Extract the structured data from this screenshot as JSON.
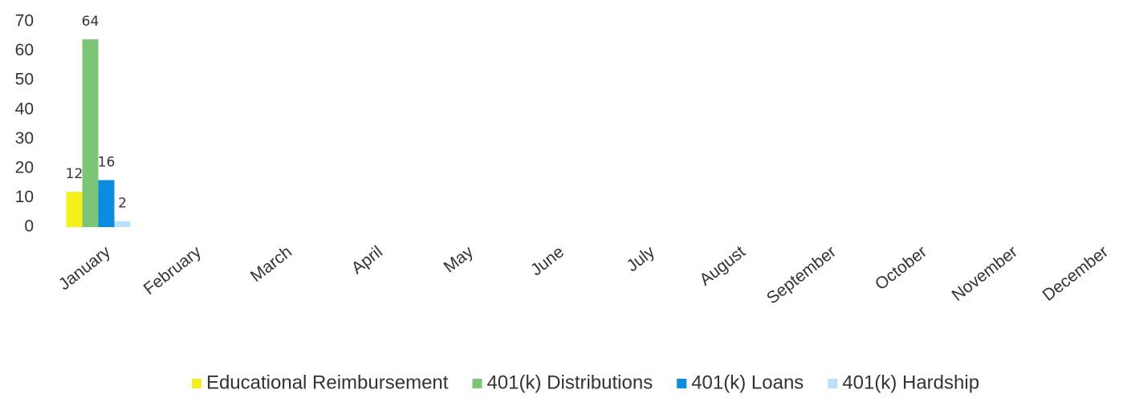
{
  "chart_data": {
    "type": "bar",
    "categories": [
      "January",
      "February",
      "March",
      "April",
      "May",
      "June",
      "July",
      "August",
      "September",
      "October",
      "November",
      "December"
    ],
    "series": [
      {
        "name": "Educational Reimbursement",
        "color": "#f5ef1a",
        "values": [
          12,
          null,
          null,
          null,
          null,
          null,
          null,
          null,
          null,
          null,
          null,
          null
        ]
      },
      {
        "name": "401(k) Distributions",
        "color": "#7cc576",
        "values": [
          64,
          null,
          null,
          null,
          null,
          null,
          null,
          null,
          null,
          null,
          null,
          null
        ]
      },
      {
        "name": "401(k) Loans",
        "color": "#0a8de0",
        "values": [
          16,
          null,
          null,
          null,
          null,
          null,
          null,
          null,
          null,
          null,
          null,
          null
        ]
      },
      {
        "name": "401(k) Hardship",
        "color": "#b9e1f7",
        "values": [
          2,
          null,
          null,
          null,
          null,
          null,
          null,
          null,
          null,
          null,
          null,
          null
        ]
      }
    ],
    "ylim": [
      0,
      70
    ],
    "yticks": [
      0,
      10,
      20,
      30,
      40,
      50,
      60,
      70
    ],
    "grid": false
  }
}
